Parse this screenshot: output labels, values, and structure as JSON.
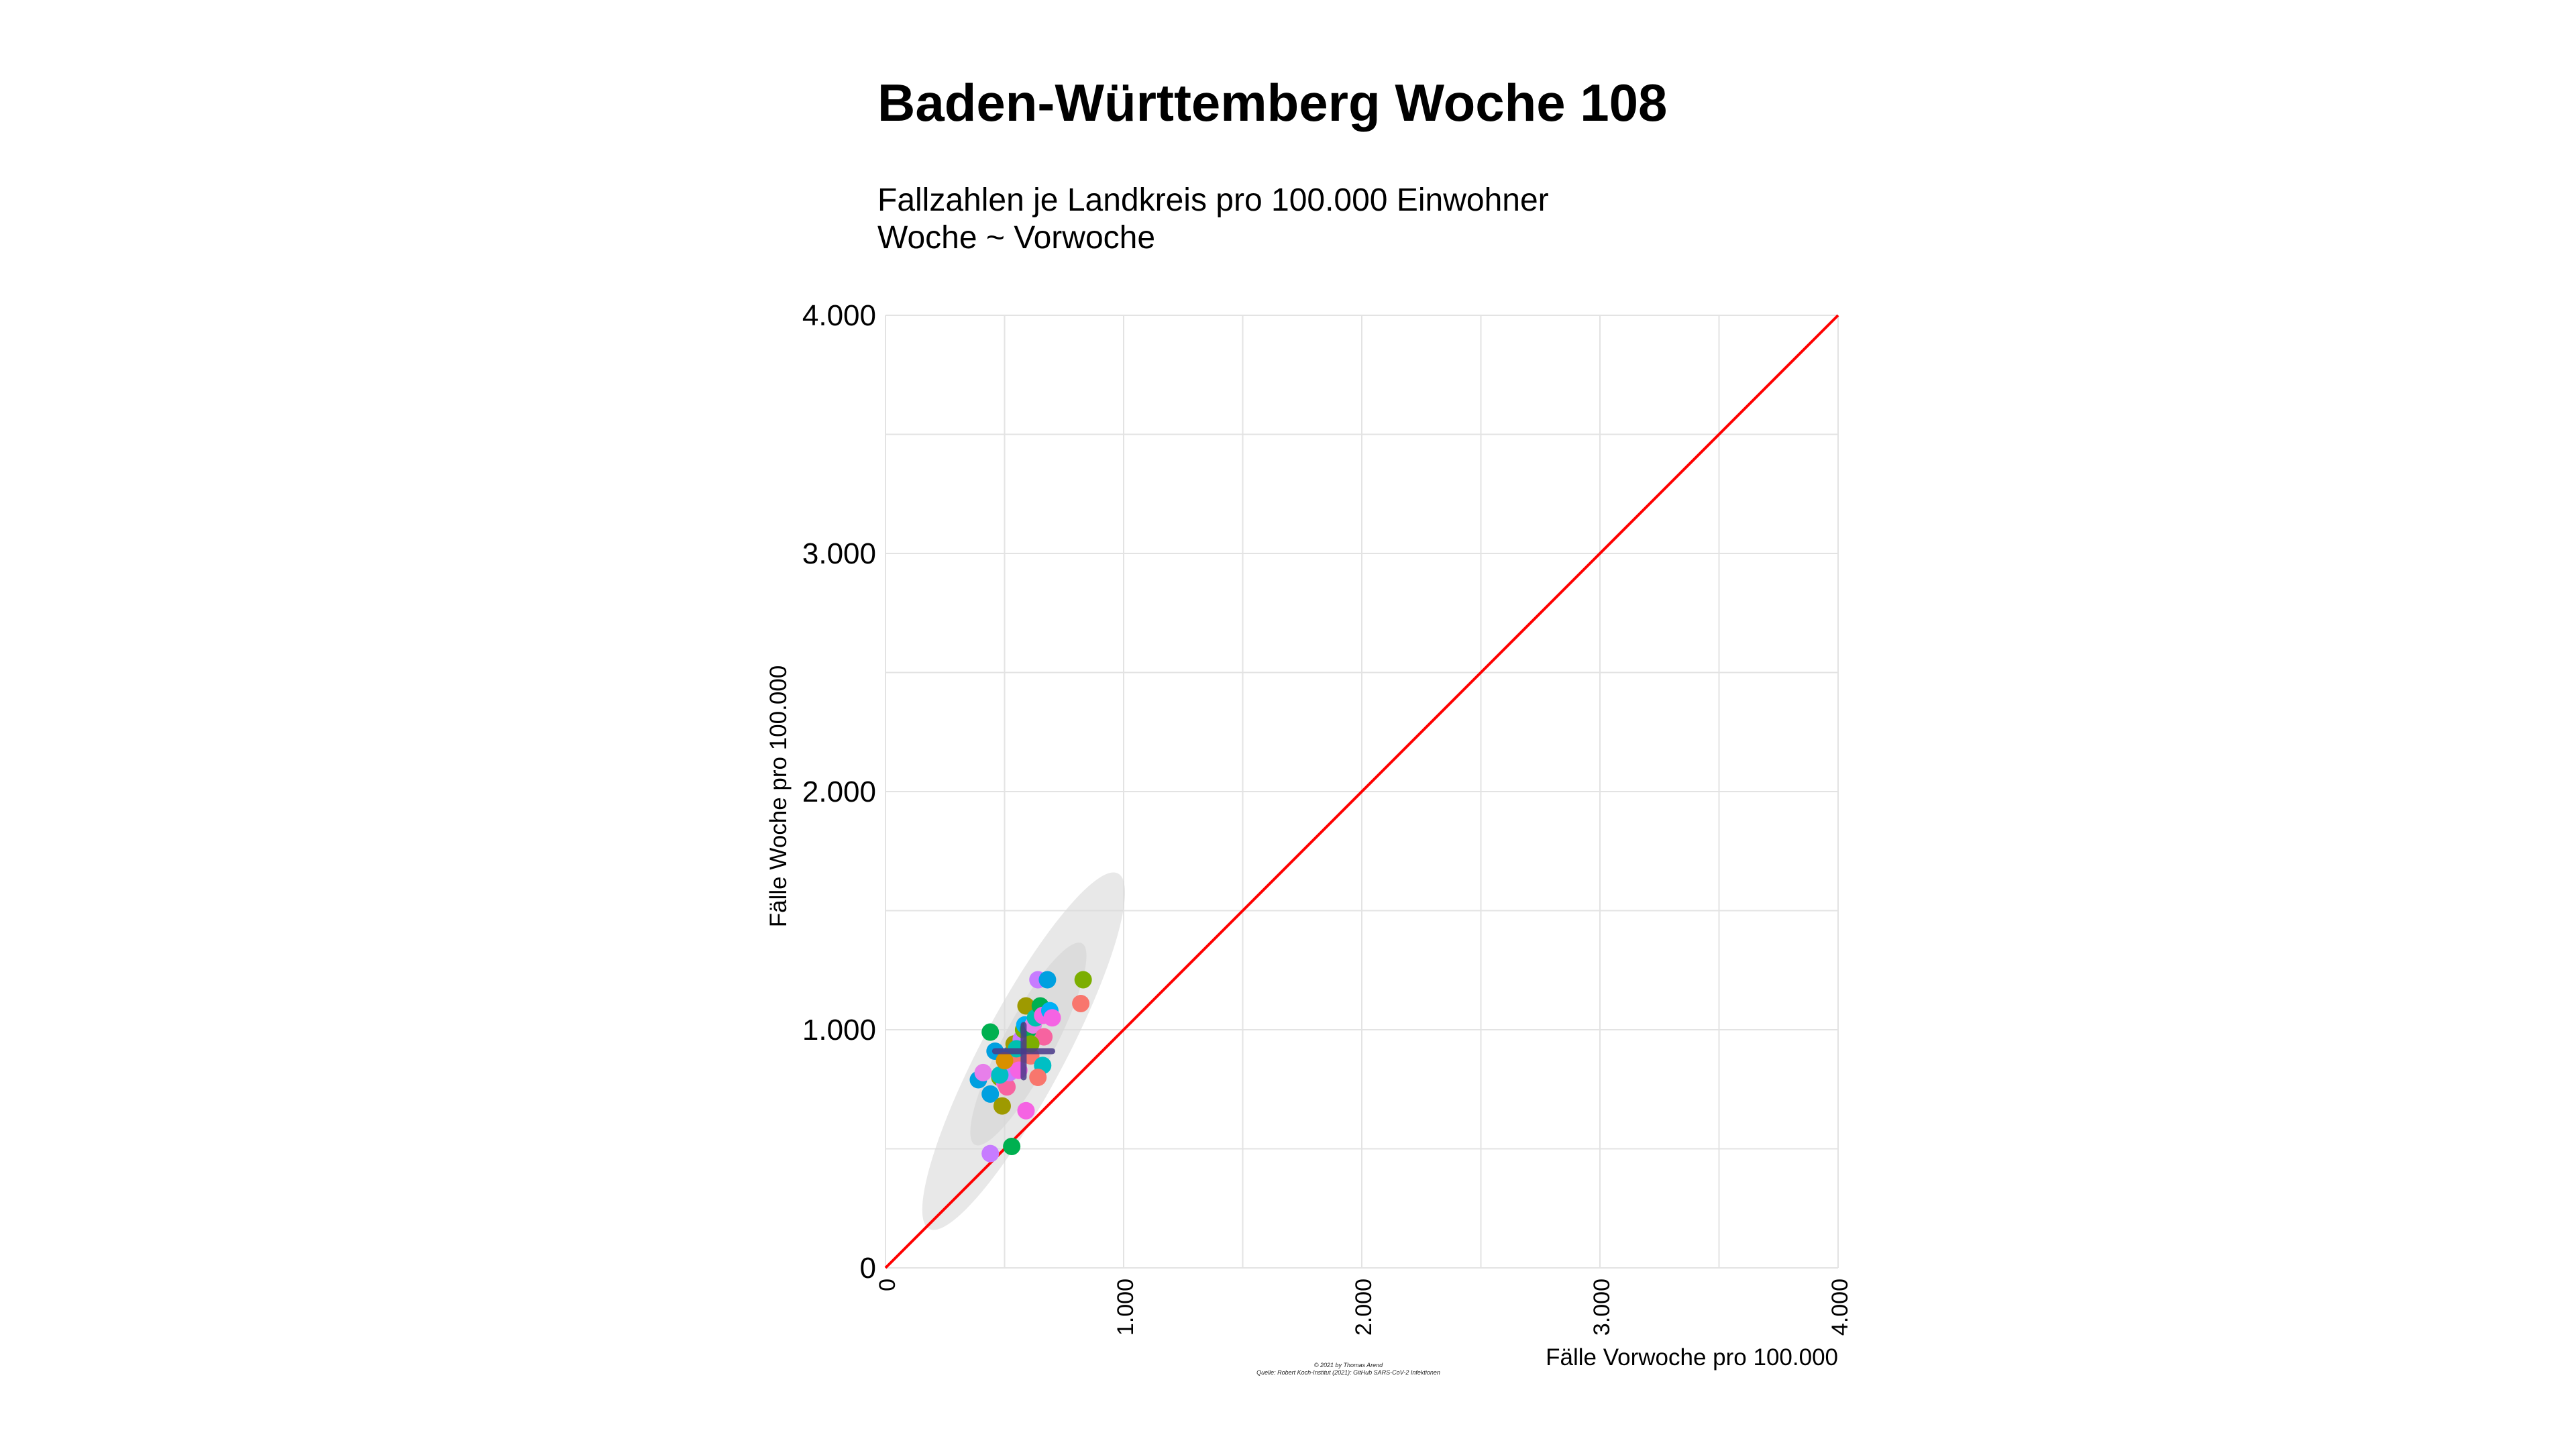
{
  "header": {
    "title": "Baden-Württemberg Woche 108",
    "subtitle_line1": "Fallzahlen je Landkreis pro 100.000 Einwohner",
    "subtitle_line2": "Woche ~ Vorwoche"
  },
  "caption": {
    "line1": "© 2021 by Thomas Arend",
    "line2": "Quelle: Robert Koch-Institut (2021): GitHub SARS-CoV-2 Infektionen"
  },
  "chart_data": {
    "type": "scatter",
    "title": "Baden-Württemberg Woche 108",
    "subtitle": "Fallzahlen je Landkreis pro 100.000 Einwohner\nWoche ~ Vorwoche",
    "xlabel": "Fälle Vorwoche pro 100.000",
    "ylabel": "Fälle Woche pro 100.000",
    "xlim": [
      0,
      4000
    ],
    "ylim": [
      0,
      4000
    ],
    "x_ticks": [
      0,
      1000,
      2000,
      3000,
      4000
    ],
    "y_ticks": [
      0,
      1000,
      2000,
      3000,
      4000
    ],
    "x_tick_labels": [
      "0",
      "1.000",
      "2.000",
      "3.000",
      "4.000"
    ],
    "y_tick_labels": [
      "0",
      "1.000",
      "2.000",
      "3.000",
      "4.000"
    ],
    "grid": true,
    "reference_line": {
      "label": "y = x",
      "from": [
        0,
        0
      ],
      "to": [
        4000,
        4000
      ],
      "color": "#ff0000"
    },
    "median_cross": {
      "x": 580,
      "y": 910,
      "x_range": [
        460,
        700
      ],
      "y_range": [
        800,
        1020
      ],
      "color": "#4a3a8a"
    },
    "confidence_ellipse_color": "#d8d8d8",
    "points": [
      {
        "x": 440,
        "y": 990,
        "color": "#00b050"
      },
      {
        "x": 460,
        "y": 910,
        "color": "#00a0e0"
      },
      {
        "x": 390,
        "y": 790,
        "color": "#00a0e0"
      },
      {
        "x": 410,
        "y": 820,
        "color": "#e77fea"
      },
      {
        "x": 440,
        "y": 730,
        "color": "#00a0e0"
      },
      {
        "x": 480,
        "y": 800,
        "color": "#7cae00"
      },
      {
        "x": 490,
        "y": 680,
        "color": "#9e9a00"
      },
      {
        "x": 500,
        "y": 780,
        "color": "#f563e3"
      },
      {
        "x": 510,
        "y": 760,
        "color": "#f763a0"
      },
      {
        "x": 520,
        "y": 820,
        "color": "#c77cff"
      },
      {
        "x": 530,
        "y": 900,
        "color": "#00a0e0"
      },
      {
        "x": 540,
        "y": 940,
        "color": "#9e9a00"
      },
      {
        "x": 550,
        "y": 870,
        "color": "#f8766d"
      },
      {
        "x": 560,
        "y": 830,
        "color": "#f563e3"
      },
      {
        "x": 570,
        "y": 960,
        "color": "#c77cff"
      },
      {
        "x": 580,
        "y": 1000,
        "color": "#7cae00"
      },
      {
        "x": 585,
        "y": 1020,
        "color": "#00b0f6"
      },
      {
        "x": 590,
        "y": 1100,
        "color": "#9e9a00"
      },
      {
        "x": 600,
        "y": 1000,
        "color": "#00b050"
      },
      {
        "x": 610,
        "y": 890,
        "color": "#f8766d"
      },
      {
        "x": 620,
        "y": 1020,
        "color": "#e77fea"
      },
      {
        "x": 630,
        "y": 1050,
        "color": "#00c0af"
      },
      {
        "x": 640,
        "y": 1210,
        "color": "#c77cff"
      },
      {
        "x": 650,
        "y": 1100,
        "color": "#00b050"
      },
      {
        "x": 660,
        "y": 1060,
        "color": "#f563e3"
      },
      {
        "x": 665,
        "y": 970,
        "color": "#f763a0"
      },
      {
        "x": 660,
        "y": 850,
        "color": "#00bfc4"
      },
      {
        "x": 680,
        "y": 1210,
        "color": "#00a0e0"
      },
      {
        "x": 690,
        "y": 1080,
        "color": "#00b0f6"
      },
      {
        "x": 700,
        "y": 1050,
        "color": "#f563e3"
      },
      {
        "x": 640,
        "y": 800,
        "color": "#f8766d"
      },
      {
        "x": 590,
        "y": 660,
        "color": "#f563e3"
      },
      {
        "x": 530,
        "y": 510,
        "color": "#00b050"
      },
      {
        "x": 440,
        "y": 480,
        "color": "#c77cff"
      },
      {
        "x": 830,
        "y": 1210,
        "color": "#7cae00"
      },
      {
        "x": 820,
        "y": 1110,
        "color": "#f8766d"
      },
      {
        "x": 480,
        "y": 810,
        "color": "#00bfc4"
      },
      {
        "x": 550,
        "y": 920,
        "color": "#00c0af"
      },
      {
        "x": 500,
        "y": 870,
        "color": "#d89000"
      },
      {
        "x": 610,
        "y": 940,
        "color": "#7cae00"
      }
    ]
  }
}
